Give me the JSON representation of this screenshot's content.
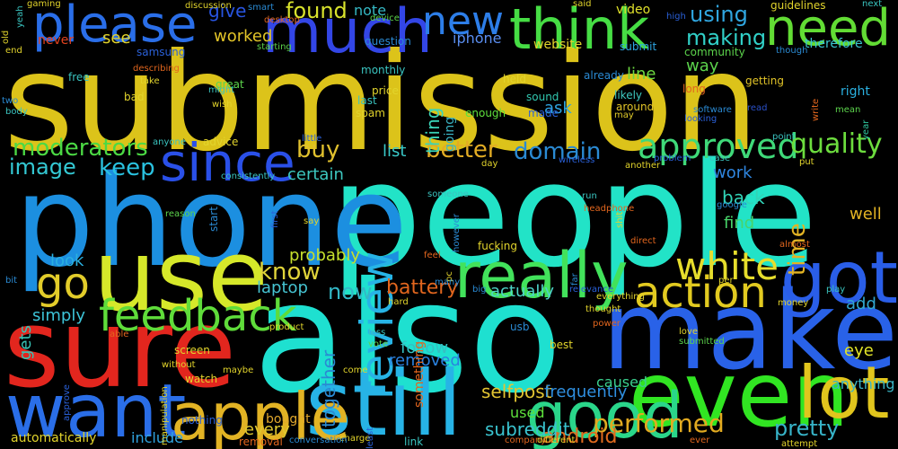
{
  "background": "#000000",
  "words": [
    {
      "text": "submission",
      "color": "#dcc31a"
    },
    {
      "text": "people",
      "color": "#22e3c7"
    },
    {
      "text": "also",
      "color": "#1ee0d0"
    },
    {
      "text": "make",
      "color": "#2962e8"
    },
    {
      "text": "phone",
      "color": "#1c8fe0"
    },
    {
      "text": "sure",
      "color": "#e2261e"
    },
    {
      "text": "use",
      "color": "#d6e82a"
    },
    {
      "text": "still",
      "color": "#27b3e6"
    },
    {
      "text": "want",
      "color": "#2a6ee8"
    },
    {
      "text": "even",
      "color": "#31e522"
    },
    {
      "text": "apple",
      "color": "#e2b324"
    },
    {
      "text": "good",
      "color": "#2ad68a"
    },
    {
      "text": "lot",
      "color": "#e1c51d"
    },
    {
      "text": "much",
      "color": "#3346e6"
    },
    {
      "text": "please",
      "color": "#2a6ee8"
    },
    {
      "text": "think",
      "color": "#46dd44"
    },
    {
      "text": "need",
      "color": "#62dc34"
    },
    {
      "text": "really",
      "color": "#42e25b"
    },
    {
      "text": "got",
      "color": "#2a5ee8"
    },
    {
      "text": "since",
      "color": "#2a50e8"
    },
    {
      "text": "feedback",
      "color": "#5fdc3a"
    },
    {
      "text": "action",
      "color": "#e2ca20"
    },
    {
      "text": "white",
      "color": "#e6dd2c"
    },
    {
      "text": "review",
      "color": "#27b4e6"
    },
    {
      "text": "go",
      "color": "#e2cc2a"
    },
    {
      "text": "new",
      "color": "#2d7ee8"
    },
    {
      "text": "approved",
      "color": "#3fd979"
    },
    {
      "text": "performed",
      "color": "#e2aa20"
    },
    {
      "text": "pretty",
      "color": "#37b3c8"
    },
    {
      "text": "moderators",
      "color": "#4bd944"
    },
    {
      "text": "domain",
      "color": "#2a8ad3"
    },
    {
      "text": "better",
      "color": "#e2ac24"
    },
    {
      "text": "quality",
      "color": "#6ddd3e"
    },
    {
      "text": "found",
      "color": "#d8e22c"
    },
    {
      "text": "image",
      "color": "#34c9d4"
    },
    {
      "text": "keep",
      "color": "#2ac2e0"
    },
    {
      "text": "buy",
      "color": "#e0c02e"
    },
    {
      "text": "using",
      "color": "#30a6e0"
    },
    {
      "text": "making",
      "color": "#31d0c8"
    },
    {
      "text": "know",
      "color": "#e0d43a"
    },
    {
      "text": "battery",
      "color": "#e2661e"
    },
    {
      "text": "now",
      "color": "#33b8c6"
    },
    {
      "text": "selfpost",
      "color": "#e2c432"
    },
    {
      "text": "frequently",
      "color": "#2f8fe0"
    },
    {
      "text": "android",
      "color": "#e26a1e"
    },
    {
      "text": "time",
      "color": "#e2b324"
    },
    {
      "text": "work",
      "color": "#2f86e0"
    },
    {
      "text": "back",
      "color": "#31d4b8"
    },
    {
      "text": "find",
      "color": "#48d46a"
    },
    {
      "text": "well",
      "color": "#e2b324"
    },
    {
      "text": "probably",
      "color": "#c6e02c"
    },
    {
      "text": "look",
      "color": "#2ab0e0"
    },
    {
      "text": "laptop",
      "color": "#46c4d2"
    },
    {
      "text": "simply",
      "color": "#3dc4d8"
    },
    {
      "text": "gets",
      "color": "#38c4b6"
    },
    {
      "text": "actually",
      "color": "#4ed4c8"
    },
    {
      "text": "removed",
      "color": "#2a82e0"
    },
    {
      "text": "follow",
      "color": "#35c0c2"
    },
    {
      "text": "caused",
      "color": "#3ad08e"
    },
    {
      "text": "anything",
      "color": "#3ab4c4"
    },
    {
      "text": "eye",
      "color": "#e2e428"
    },
    {
      "text": "add",
      "color": "#31a8d0"
    },
    {
      "text": "every",
      "color": "#e0c830"
    },
    {
      "text": "bought",
      "color": "#e0a72c"
    },
    {
      "text": "used",
      "color": "#5ee03c"
    },
    {
      "text": "subreddit",
      "color": "#3ac4d0"
    },
    {
      "text": "include",
      "color": "#30a4e0"
    },
    {
      "text": "automatically",
      "color": "#e2d42c"
    },
    {
      "text": "certain",
      "color": "#3dc8c0"
    },
    {
      "text": "list",
      "color": "#39c8c8"
    },
    {
      "text": "line",
      "color": "#6cd840"
    },
    {
      "text": "way",
      "color": "#5cd44c"
    },
    {
      "text": "ask",
      "color": "#2ea4e0"
    },
    {
      "text": "worked",
      "color": "#e2c428"
    },
    {
      "text": "give",
      "color": "#2854e0"
    },
    {
      "text": "see",
      "color": "#e2d42c"
    },
    {
      "text": "never",
      "color": "#e2421e"
    },
    {
      "text": "iphone",
      "color": "#5a8ef0"
    },
    {
      "text": "thing",
      "color": "#3ad4b8"
    },
    {
      "text": "going",
      "color": "#3ab4c4"
    },
    {
      "text": "together",
      "color": "#2a8ad3"
    },
    {
      "text": "something",
      "color": "#e2661e"
    },
    {
      "text": "note",
      "color": "#35b8c4"
    },
    {
      "text": "video",
      "color": "#dfe02a"
    },
    {
      "text": "guidelines",
      "color": "#e2d42c"
    },
    {
      "text": "website",
      "color": "#e2d42c"
    },
    {
      "text": "submit",
      "color": "#2ea4e0"
    },
    {
      "text": "therefore",
      "color": "#3ac4d0"
    },
    {
      "text": "community",
      "color": "#5cd44c"
    },
    {
      "text": "question",
      "color": "#2a8ad3"
    },
    {
      "text": "monthly",
      "color": "#3ac4c0"
    },
    {
      "text": "held",
      "color": "#e2d42c"
    },
    {
      "text": "already",
      "color": "#2a8ad3"
    },
    {
      "text": "likely",
      "color": "#3dc8c0"
    },
    {
      "text": "around",
      "color": "#e2c428"
    },
    {
      "text": "getting",
      "color": "#e2c428"
    },
    {
      "text": "right",
      "color": "#2ab0e0"
    },
    {
      "text": "long",
      "color": "#e2661e"
    },
    {
      "text": "price",
      "color": "#e2d42c"
    },
    {
      "text": "last",
      "color": "#3ac4c0"
    },
    {
      "text": "spam",
      "color": "#e2d42c"
    },
    {
      "text": "enough",
      "color": "#5ee03c"
    },
    {
      "text": "sound",
      "color": "#31c8b0"
    },
    {
      "text": "made",
      "color": "#2a60d8"
    },
    {
      "text": "may",
      "color": "#e2cc2a"
    },
    {
      "text": "software",
      "color": "#2a8ad3"
    },
    {
      "text": "looking",
      "color": "#2a60d8"
    },
    {
      "text": "read",
      "color": "#2a50c8"
    },
    {
      "text": "mean",
      "color": "#5cd44c"
    },
    {
      "text": "year",
      "color": "#2fc8a0"
    },
    {
      "text": "write",
      "color": "#e2661e"
    },
    {
      "text": "though",
      "color": "#2a8ad3"
    },
    {
      "text": "next",
      "color": "#3ac4c0"
    },
    {
      "text": "device",
      "color": "#5cd44c"
    },
    {
      "text": "high",
      "color": "#2a60d8"
    },
    {
      "text": "said",
      "color": "#e2d42c"
    },
    {
      "text": "desktop",
      "color": "#e2661e"
    },
    {
      "text": "starting",
      "color": "#5cd44c"
    },
    {
      "text": "smart",
      "color": "#2a8ad3"
    },
    {
      "text": "discussion",
      "color": "#e2d42c"
    },
    {
      "text": "gaming",
      "color": "#e2d42c"
    },
    {
      "text": "old",
      "color": "#e2d42c"
    },
    {
      "text": "end",
      "color": "#e2d42c"
    },
    {
      "text": "yeah",
      "color": "#3ac4c0"
    },
    {
      "text": "two",
      "color": "#2a8ad3"
    },
    {
      "text": "body",
      "color": "#3ac4c0"
    },
    {
      "text": "samsung",
      "color": "#2a60d8"
    },
    {
      "text": "describing",
      "color": "#e2661e"
    },
    {
      "text": "take",
      "color": "#e2d42c"
    },
    {
      "text": "free",
      "color": "#3ac4c0"
    },
    {
      "text": "bad",
      "color": "#e2d42c"
    },
    {
      "text": "great",
      "color": "#5cd44c"
    },
    {
      "text": "might",
      "color": "#3ac4c0"
    },
    {
      "text": "wish",
      "color": "#e2d42c"
    },
    {
      "text": "anyone",
      "color": "#3ac4c0"
    },
    {
      "text": "advice",
      "color": "#e2d42c"
    },
    {
      "text": "little",
      "color": "#2a60d8"
    },
    {
      "text": "consistently",
      "color": "#3ac4c0"
    },
    {
      "text": "start",
      "color": "#2a8ad3"
    },
    {
      "text": "reason",
      "color": "#5cd44c"
    },
    {
      "text": "first",
      "color": "#2a60d8"
    },
    {
      "text": "say",
      "color": "#e2d42c"
    },
    {
      "text": "day",
      "color": "#e2d42c"
    },
    {
      "text": "someone",
      "color": "#3ac4c0"
    },
    {
      "text": "however",
      "color": "#2a8ad3"
    },
    {
      "text": "run",
      "color": "#3ac4c0"
    },
    {
      "text": "headphone",
      "color": "#e2661e"
    },
    {
      "text": "shit",
      "color": "#e2d42c"
    },
    {
      "text": "google",
      "color": "#2a8ad3"
    },
    {
      "text": "wireless",
      "color": "#2a60d8"
    },
    {
      "text": "problem",
      "color": "#2a60d8"
    },
    {
      "text": "case",
      "color": "#3ac4c0"
    },
    {
      "text": "another",
      "color": "#e2d42c"
    },
    {
      "text": "point",
      "color": "#3ac4c0"
    },
    {
      "text": "put",
      "color": "#e2d42c"
    },
    {
      "text": "direct",
      "color": "#e2661e"
    },
    {
      "text": "almost",
      "color": "#e2661e"
    },
    {
      "text": "per",
      "color": "#e2d42c"
    },
    {
      "text": "play",
      "color": "#3ac4c0"
    },
    {
      "text": "relevance",
      "color": "#2a60d8"
    },
    {
      "text": "everything",
      "color": "#e2d42c"
    },
    {
      "text": "thought",
      "color": "#e2d42c"
    },
    {
      "text": "power",
      "color": "#e2661e"
    },
    {
      "text": "money",
      "color": "#e2d42c"
    },
    {
      "text": "best",
      "color": "#e2d42c"
    },
    {
      "text": "submitted",
      "color": "#5cd44c"
    },
    {
      "text": "love",
      "color": "#e2d42c"
    },
    {
      "text": "far",
      "color": "#2a8ad3"
    },
    {
      "text": "fucking",
      "color": "#e2d42c"
    },
    {
      "text": "pc",
      "color": "#e2d42c"
    },
    {
      "text": "feel",
      "color": "#e2661e"
    },
    {
      "text": "many",
      "color": "#2a8ad3"
    },
    {
      "text": "big",
      "color": "#2a8ad3"
    },
    {
      "text": "hard",
      "color": "#e2d42c"
    },
    {
      "text": "usb",
      "color": "#2a8ad3"
    },
    {
      "text": "less",
      "color": "#3ac4c0"
    },
    {
      "text": "vote",
      "color": "#5cd44c"
    },
    {
      "text": "come",
      "color": "#e2d42c"
    },
    {
      "text": "charge",
      "color": "#e2d42c"
    },
    {
      "text": "least",
      "color": "#2a60d8"
    },
    {
      "text": "link",
      "color": "#3ac4c0"
    },
    {
      "text": "company",
      "color": "#e2661e"
    },
    {
      "text": "different",
      "color": "#e2d42c"
    },
    {
      "text": "ever",
      "color": "#e2661e"
    },
    {
      "text": "attempt",
      "color": "#e2d42c"
    },
    {
      "text": "conversation",
      "color": "#2a8ad3"
    },
    {
      "text": "removal",
      "color": "#e2661e"
    },
    {
      "text": "product",
      "color": "#e2d42c"
    },
    {
      "text": "watch",
      "color": "#e2d42c"
    },
    {
      "text": "without",
      "color": "#e2d42c"
    },
    {
      "text": "screen",
      "color": "#e2d42c"
    },
    {
      "text": "nothing",
      "color": "#2a60d8"
    },
    {
      "text": "maybe",
      "color": "#e2d42c"
    },
    {
      "text": "manipulation",
      "color": "#e2d42c"
    },
    {
      "text": "able",
      "color": "#e2661e"
    },
    {
      "text": "approve",
      "color": "#2a60d8"
    },
    {
      "text": "bit",
      "color": "#2a8ad3"
    },
    {
      "text": "bluetooth",
      "color": "#5cd44c"
    },
    {
      "text": "audio",
      "color": "#e2d42c"
    }
  ]
}
